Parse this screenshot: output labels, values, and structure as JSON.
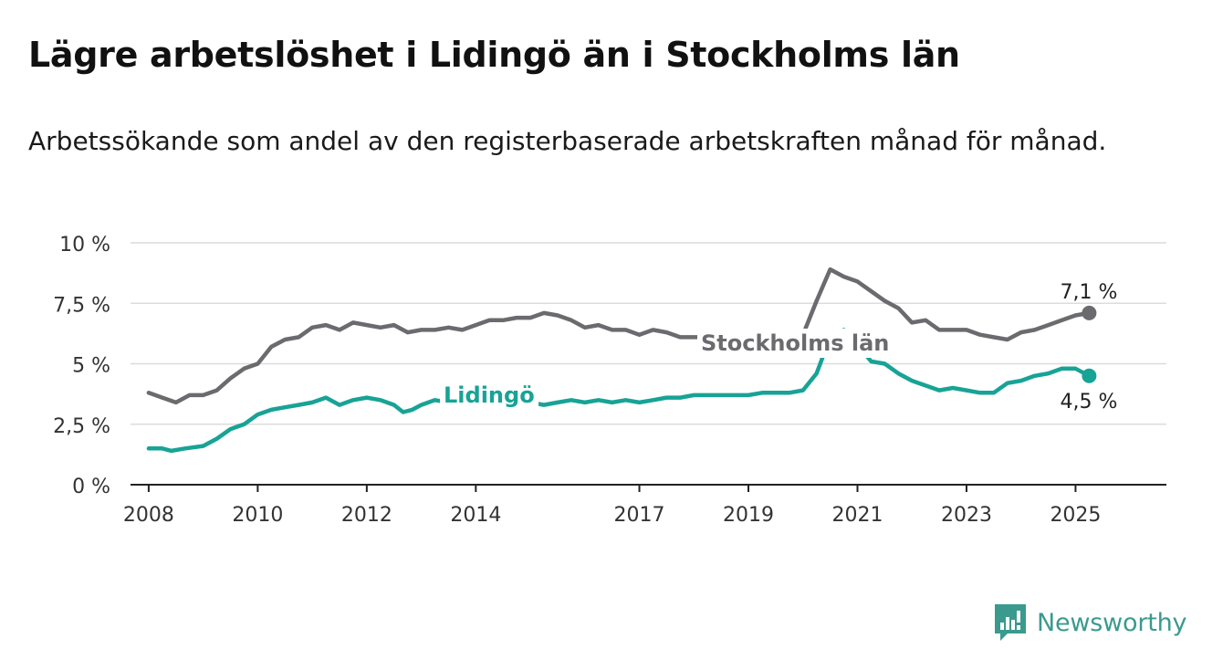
{
  "chart_data": {
    "type": "line",
    "title": "Lägre arbetslöshet i Lidingö än i Stockholms län",
    "subtitle": "Arbetssökande som andel av den registerbaserade arbetskraften månad för månad.",
    "xlim": [
      "2007-09",
      "2026-09"
    ],
    "ylim": [
      0,
      10
    ],
    "y_ticks": [
      0,
      2.5,
      5,
      7.5,
      10
    ],
    "y_tick_labels": [
      "0 %",
      "2,5 %",
      "5 %",
      "7,5 %",
      "10 %"
    ],
    "x_ticks": [
      "2008-01",
      "2010-01",
      "2012-01",
      "2014-01",
      "2017-01",
      "2019-01",
      "2021-01",
      "2023-01",
      "2025-01"
    ],
    "x_tick_labels": [
      "2008",
      "2010",
      "2012",
      "2014",
      "2017",
      "2019",
      "2021",
      "2023",
      "2025"
    ],
    "grid": true,
    "series": [
      {
        "name": "Stockholms län",
        "color": "#6b6b6f",
        "end_label": "7,1 %",
        "points": [
          [
            "2008-01",
            3.8
          ],
          [
            "2008-04",
            3.6
          ],
          [
            "2008-07",
            3.4
          ],
          [
            "2008-10",
            3.7
          ],
          [
            "2009-01",
            3.7
          ],
          [
            "2009-04",
            3.9
          ],
          [
            "2009-07",
            4.4
          ],
          [
            "2009-10",
            4.8
          ],
          [
            "2010-01",
            5.0
          ],
          [
            "2010-04",
            5.7
          ],
          [
            "2010-07",
            6.0
          ],
          [
            "2010-10",
            6.1
          ],
          [
            "2011-01",
            6.5
          ],
          [
            "2011-04",
            6.6
          ],
          [
            "2011-07",
            6.4
          ],
          [
            "2011-10",
            6.7
          ],
          [
            "2012-01",
            6.6
          ],
          [
            "2012-04",
            6.5
          ],
          [
            "2012-07",
            6.6
          ],
          [
            "2012-10",
            6.3
          ],
          [
            "2013-01",
            6.4
          ],
          [
            "2013-04",
            6.4
          ],
          [
            "2013-07",
            6.5
          ],
          [
            "2013-10",
            6.4
          ],
          [
            "2014-01",
            6.6
          ],
          [
            "2014-04",
            6.8
          ],
          [
            "2014-07",
            6.8
          ],
          [
            "2014-10",
            6.9
          ],
          [
            "2015-01",
            6.9
          ],
          [
            "2015-04",
            7.1
          ],
          [
            "2015-07",
            7.0
          ],
          [
            "2015-10",
            6.8
          ],
          [
            "2016-01",
            6.5
          ],
          [
            "2016-04",
            6.6
          ],
          [
            "2016-07",
            6.4
          ],
          [
            "2016-10",
            6.4
          ],
          [
            "2017-01",
            6.2
          ],
          [
            "2017-04",
            6.4
          ],
          [
            "2017-07",
            6.3
          ],
          [
            "2017-10",
            6.1
          ],
          [
            "2018-01",
            6.1
          ],
          [
            "2018-04",
            6.1
          ],
          [
            "2018-07",
            6.0
          ],
          [
            "2018-10",
            6.1
          ],
          [
            "2019-01",
            6.0
          ],
          [
            "2019-04",
            5.9
          ],
          [
            "2019-07",
            6.1
          ],
          [
            "2019-10",
            6.1
          ],
          [
            "2020-01",
            6.2
          ],
          [
            "2020-04",
            7.6
          ],
          [
            "2020-07",
            8.9
          ],
          [
            "2020-10",
            8.6
          ],
          [
            "2021-01",
            8.4
          ],
          [
            "2021-04",
            8.0
          ],
          [
            "2021-07",
            7.6
          ],
          [
            "2021-10",
            7.3
          ],
          [
            "2022-01",
            6.7
          ],
          [
            "2022-04",
            6.8
          ],
          [
            "2022-07",
            6.4
          ],
          [
            "2022-10",
            6.4
          ],
          [
            "2023-01",
            6.4
          ],
          [
            "2023-04",
            6.2
          ],
          [
            "2023-07",
            6.1
          ],
          [
            "2023-10",
            6.0
          ],
          [
            "2024-01",
            6.3
          ],
          [
            "2024-04",
            6.4
          ],
          [
            "2024-07",
            6.6
          ],
          [
            "2024-10",
            6.8
          ],
          [
            "2025-01",
            7.0
          ],
          [
            "2025-04",
            7.1
          ]
        ]
      },
      {
        "name": "Lidingö",
        "color": "#17a396",
        "end_label": "4,5 %",
        "points": [
          [
            "2008-01",
            1.5
          ],
          [
            "2008-04",
            1.5
          ],
          [
            "2008-06",
            1.4
          ],
          [
            "2008-09",
            1.5
          ],
          [
            "2009-01",
            1.6
          ],
          [
            "2009-04",
            1.9
          ],
          [
            "2009-07",
            2.3
          ],
          [
            "2009-10",
            2.5
          ],
          [
            "2010-01",
            2.9
          ],
          [
            "2010-04",
            3.1
          ],
          [
            "2010-07",
            3.2
          ],
          [
            "2010-10",
            3.3
          ],
          [
            "2011-01",
            3.4
          ],
          [
            "2011-04",
            3.6
          ],
          [
            "2011-07",
            3.3
          ],
          [
            "2011-10",
            3.5
          ],
          [
            "2012-01",
            3.6
          ],
          [
            "2012-04",
            3.5
          ],
          [
            "2012-07",
            3.3
          ],
          [
            "2012-09",
            3.0
          ],
          [
            "2012-11",
            3.1
          ],
          [
            "2013-01",
            3.3
          ],
          [
            "2013-04",
            3.5
          ],
          [
            "2013-07",
            3.4
          ],
          [
            "2013-10",
            3.5
          ],
          [
            "2014-01",
            3.5
          ],
          [
            "2014-04",
            3.4
          ],
          [
            "2014-07",
            3.3
          ],
          [
            "2014-10",
            3.4
          ],
          [
            "2015-01",
            3.4
          ],
          [
            "2015-04",
            3.3
          ],
          [
            "2015-07",
            3.4
          ],
          [
            "2015-10",
            3.5
          ],
          [
            "2016-01",
            3.4
          ],
          [
            "2016-04",
            3.5
          ],
          [
            "2016-07",
            3.4
          ],
          [
            "2016-10",
            3.5
          ],
          [
            "2017-01",
            3.4
          ],
          [
            "2017-04",
            3.5
          ],
          [
            "2017-07",
            3.6
          ],
          [
            "2017-10",
            3.6
          ],
          [
            "2018-01",
            3.7
          ],
          [
            "2018-04",
            3.7
          ],
          [
            "2018-07",
            3.7
          ],
          [
            "2018-10",
            3.7
          ],
          [
            "2019-01",
            3.7
          ],
          [
            "2019-04",
            3.8
          ],
          [
            "2019-07",
            3.8
          ],
          [
            "2019-10",
            3.8
          ],
          [
            "2020-01",
            3.9
          ],
          [
            "2020-04",
            4.6
          ],
          [
            "2020-07",
            6.1
          ],
          [
            "2020-10",
            6.4
          ],
          [
            "2021-01",
            5.8
          ],
          [
            "2021-04",
            5.1
          ],
          [
            "2021-07",
            5.0
          ],
          [
            "2021-10",
            4.6
          ],
          [
            "2022-01",
            4.3
          ],
          [
            "2022-04",
            4.1
          ],
          [
            "2022-07",
            3.9
          ],
          [
            "2022-10",
            4.0
          ],
          [
            "2023-01",
            3.9
          ],
          [
            "2023-04",
            3.8
          ],
          [
            "2023-07",
            3.8
          ],
          [
            "2023-10",
            4.2
          ],
          [
            "2024-01",
            4.3
          ],
          [
            "2024-04",
            4.5
          ],
          [
            "2024-07",
            4.6
          ],
          [
            "2024-10",
            4.8
          ],
          [
            "2025-01",
            4.8
          ],
          [
            "2025-04",
            4.5
          ]
        ]
      }
    ]
  },
  "brand": {
    "name": "Newsworthy",
    "icon": "newsworthy-logo-icon",
    "color": "#3a9a8e"
  }
}
